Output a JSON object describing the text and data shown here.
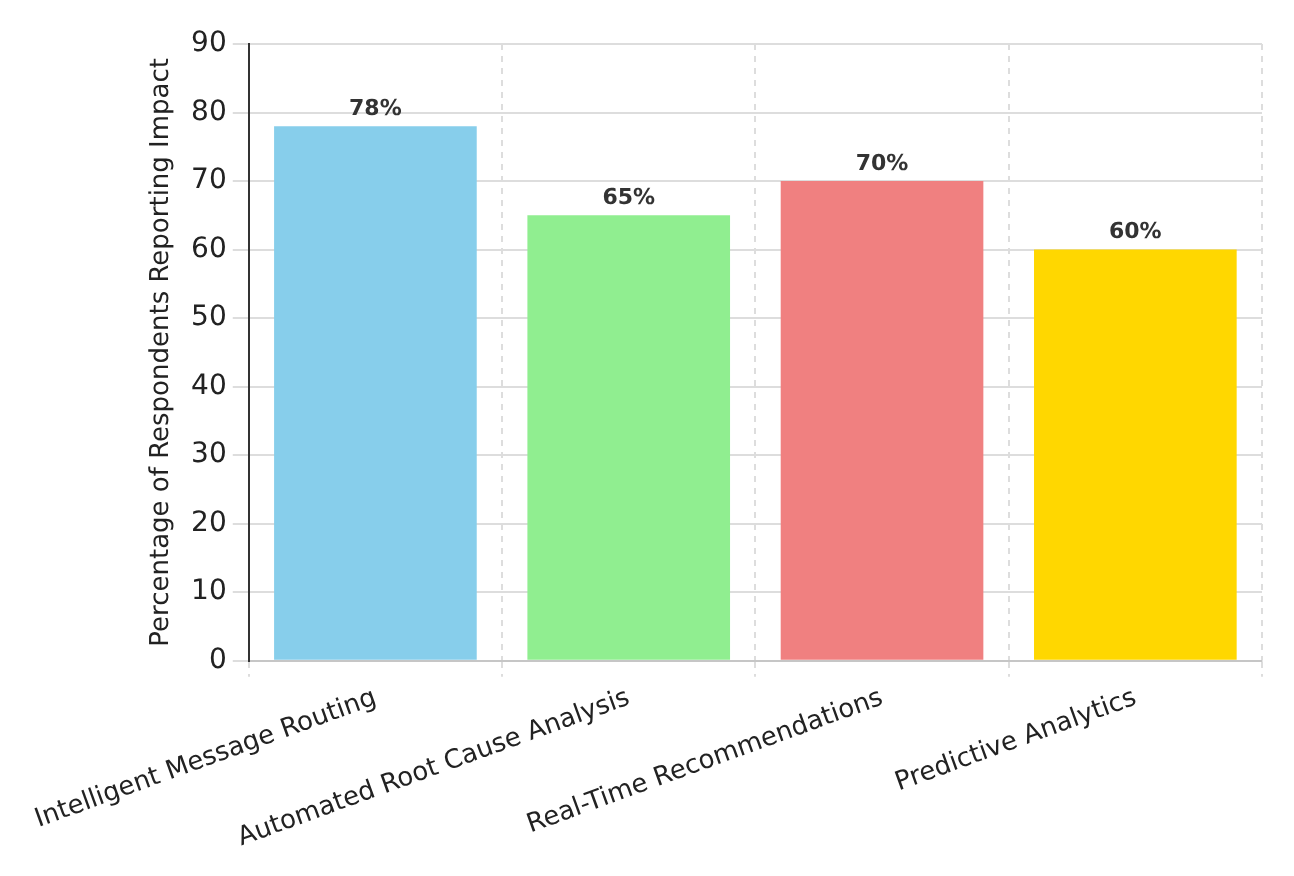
{
  "chart_data": {
    "type": "bar",
    "ylabel": "Percentage of Respondents Reporting Impact",
    "categories": [
      "Intelligent Message Routing",
      "Automated Root Cause Analysis",
      "Real-Time Recommendations",
      "Predictive Analytics"
    ],
    "values": [
      78,
      65,
      70,
      60
    ],
    "colors": [
      "#87ceeb",
      "#90ee90",
      "#f08080",
      "#ffd700"
    ],
    "value_labels": [
      "78%",
      "65%",
      "70%",
      "60%"
    ],
    "ylim": [
      0,
      90
    ],
    "yticks": [
      0,
      10,
      20,
      30,
      40,
      50,
      60,
      70,
      80,
      90
    ],
    "grid": true
  }
}
